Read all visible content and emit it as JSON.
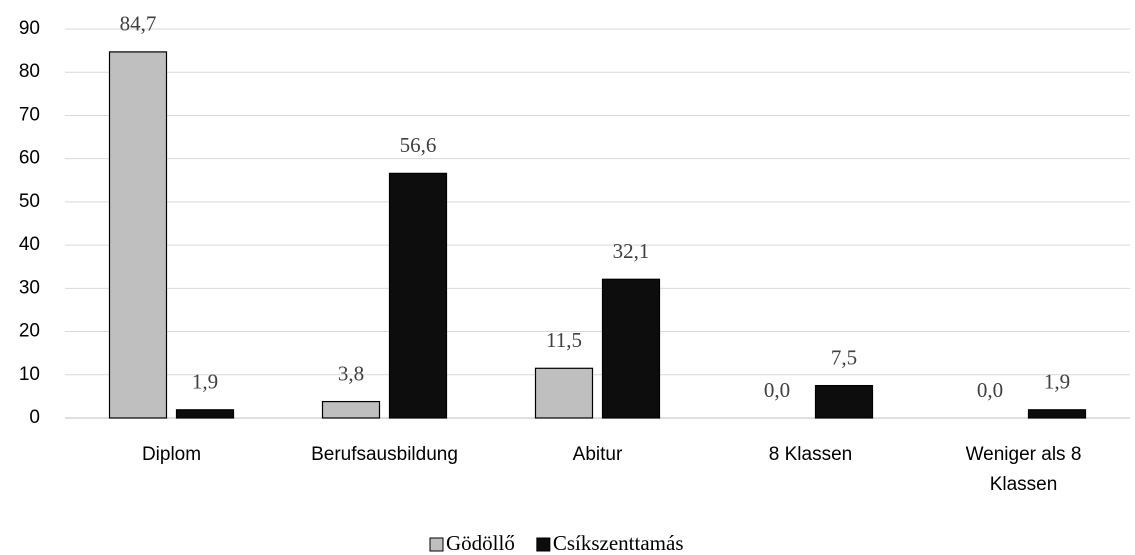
{
  "chart_data": {
    "type": "bar",
    "categories": [
      "Diplom",
      "Berufsausbildung",
      "Abitur",
      "8 Klassen",
      "Weniger als 8 Klassen"
    ],
    "series": [
      {
        "name": "Gödöllő",
        "color": "#bfbfbf",
        "values": [
          84.7,
          3.8,
          11.5,
          0,
          0
        ],
        "value_labels": [
          "84,7",
          "3,8",
          "11,5",
          "0,0",
          "0,0"
        ]
      },
      {
        "name": "Csíkszenttamás",
        "color": "#0d0d0d",
        "values": [
          1.9,
          56.6,
          32.1,
          7.5,
          1.9
        ],
        "value_labels": [
          "1,9",
          "56,6",
          "32,1",
          "7,5",
          "1,9"
        ]
      }
    ],
    "ylim": [
      0,
      90
    ],
    "yticks": [
      0,
      10,
      20,
      30,
      40,
      50,
      60,
      70,
      80,
      90
    ],
    "grid": true,
    "legend": "bottom"
  }
}
